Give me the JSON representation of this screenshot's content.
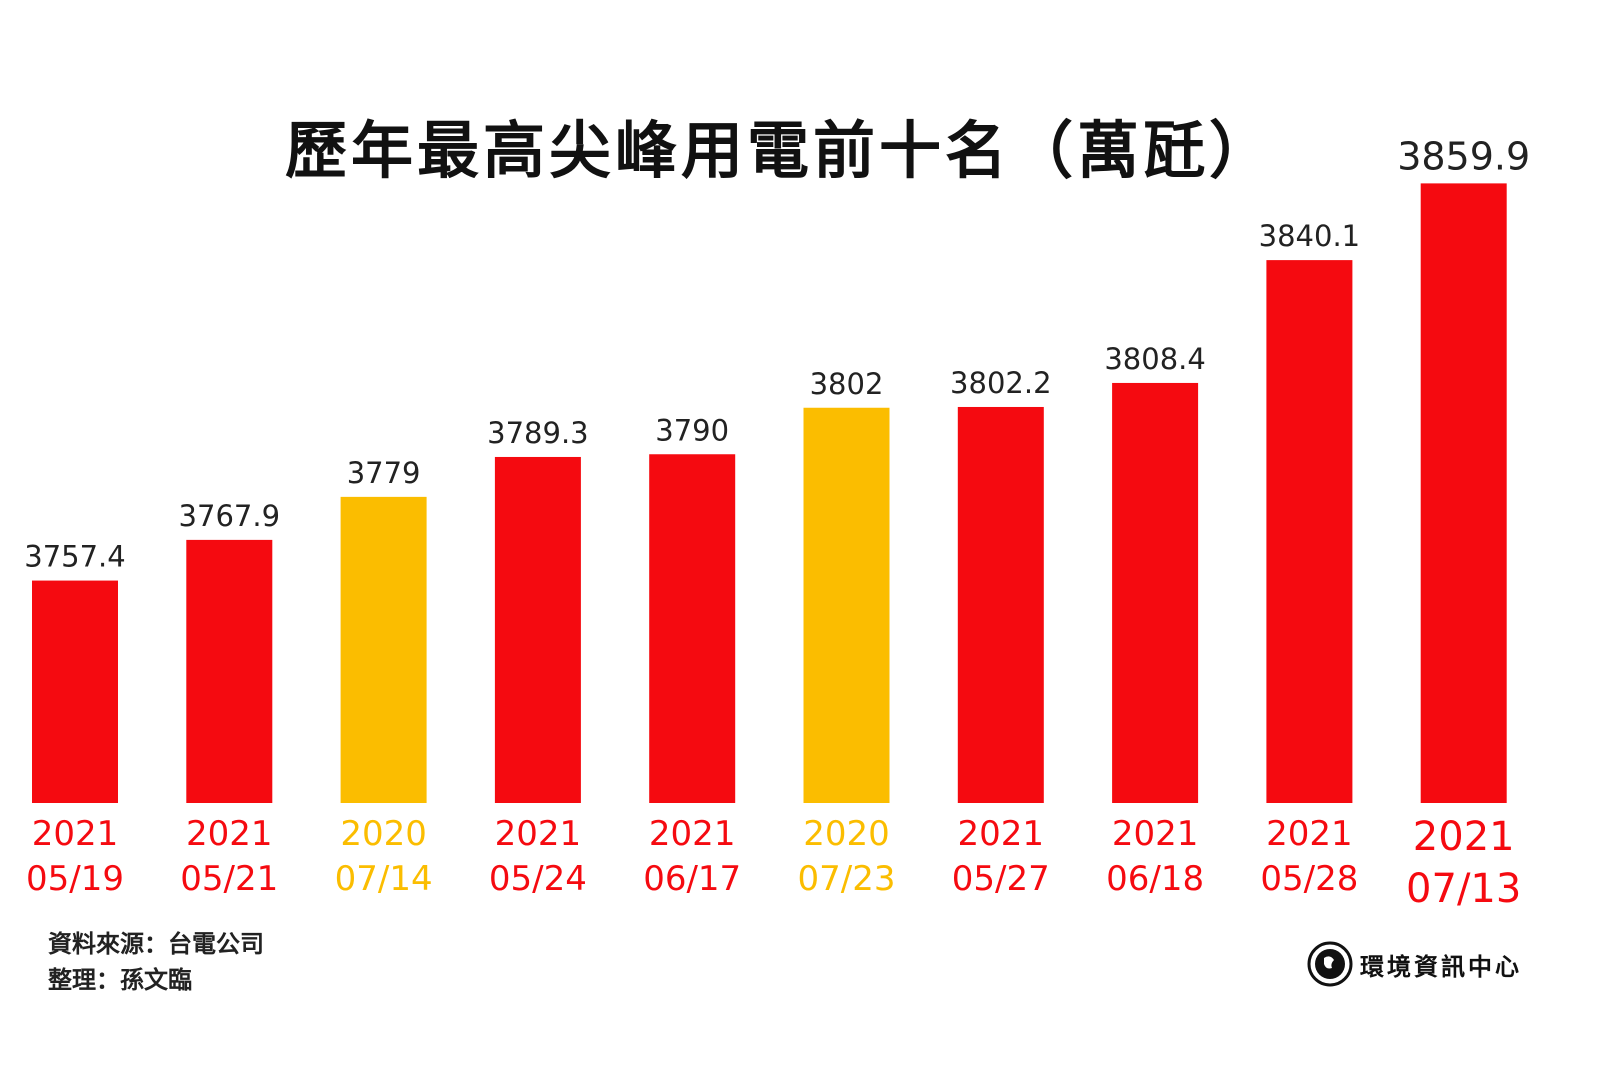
{
  "chart_data": {
    "type": "bar",
    "title": "歷年最高尖峰用電前十名（萬瓩）",
    "categories": [
      [
        "2021",
        "05/19"
      ],
      [
        "2021",
        "05/21"
      ],
      [
        "2020",
        "07/14"
      ],
      [
        "2021",
        "05/24"
      ],
      [
        "2021",
        "06/17"
      ],
      [
        "2020",
        "07/23"
      ],
      [
        "2021",
        "05/27"
      ],
      [
        "2021",
        "06/18"
      ],
      [
        "2021",
        "05/28"
      ],
      [
        "2021",
        "07/13"
      ]
    ],
    "values": [
      3757.4,
      3767.9,
      3779,
      3789.3,
      3790,
      3802,
      3802.2,
      3808.4,
      3840.1,
      3859.9
    ],
    "value_labels": [
      "3757.4",
      "3767.9",
      "3779",
      "3789.3",
      "3790",
      "3802",
      "3802.2",
      "3808.4",
      "3840.1",
      "3859.9"
    ],
    "colors": {
      "2021": "#f50a10",
      "2020": "#fbbd00"
    },
    "ylim": [
      3700,
      3860
    ],
    "grid": false,
    "xlabel": "",
    "ylabel": ""
  },
  "footer": {
    "source": "資料來源：台電公司",
    "editor": "整理：孫文臨",
    "logo": "環境資訊中心"
  }
}
